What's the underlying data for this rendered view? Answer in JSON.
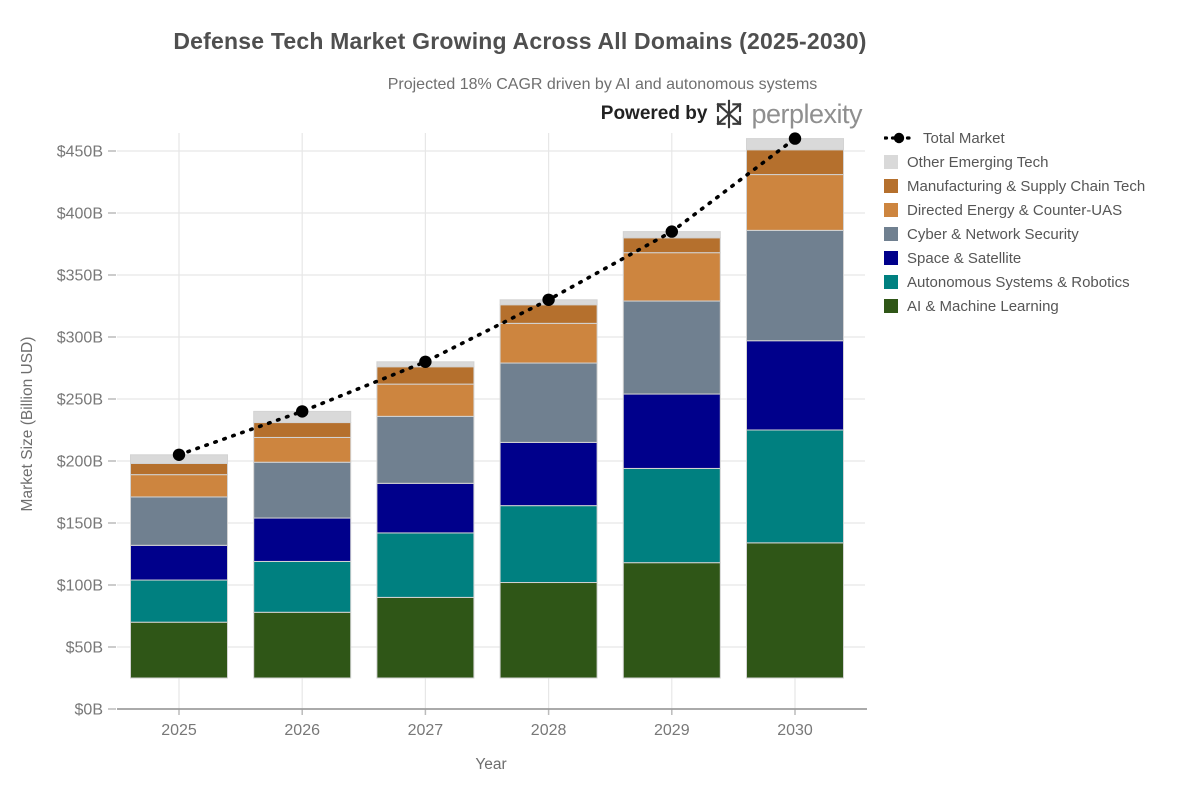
{
  "header": {
    "title": "Defense Tech Market Growing Across All Domains (2025-2030)",
    "subtitle": "Projected 18% CAGR driven by AI and autonomous systems",
    "powered_by": "Powered by",
    "brand": "perplexity"
  },
  "chart_data": {
    "type": "bar",
    "stacked": true,
    "title": "Defense Tech Market Growing Across All Domains (2025-2030)",
    "subtitle": "Projected 18% CAGR driven by AI and autonomous systems",
    "xlabel": "Year",
    "ylabel": "Market Size (Billion USD)",
    "categories": [
      "2025",
      "2026",
      "2027",
      "2028",
      "2029",
      "2030"
    ],
    "series": [
      {
        "name": "AI & Machine Learning",
        "color": "#2f5617",
        "values": [
          45,
          53,
          65,
          77,
          93,
          109
        ]
      },
      {
        "name": "Autonomous Systems & Robotics",
        "color": "#008080",
        "values": [
          34,
          41,
          52,
          62,
          76,
          91
        ]
      },
      {
        "name": "Space & Satellite",
        "color": "#00008b",
        "values": [
          28,
          35,
          40,
          51,
          60,
          72
        ]
      },
      {
        "name": "Cyber & Network Security",
        "color": "#708090",
        "values": [
          39,
          45,
          54,
          64,
          75,
          89
        ]
      },
      {
        "name": "Directed Energy & Counter-UAS",
        "color": "#cd853f",
        "values": [
          18,
          20,
          26,
          32,
          39,
          45
        ]
      },
      {
        "name": "Manufacturing & Supply Chain Tech",
        "color": "#b5702d",
        "values": [
          9,
          12,
          14,
          15,
          12,
          20
        ]
      },
      {
        "name": "Other Emerging Tech",
        "color": "#d9d9d9",
        "values": [
          7,
          9,
          4,
          4,
          5,
          9
        ]
      }
    ],
    "total_line": {
      "name": "Total Market",
      "color": "#000000",
      "values": [
        205,
        240,
        280,
        330,
        385,
        460
      ]
    },
    "stack_base": 25,
    "ylim": [
      0,
      475
    ],
    "yticks": [
      {
        "v": 0,
        "label": "$0B"
      },
      {
        "v": 50,
        "label": "$50B"
      },
      {
        "v": 100,
        "label": "$100B"
      },
      {
        "v": 150,
        "label": "$150B"
      },
      {
        "v": 200,
        "label": "$200B"
      },
      {
        "v": 250,
        "label": "$250B"
      },
      {
        "v": 300,
        "label": "$300B"
      },
      {
        "v": 350,
        "label": "$350B"
      },
      {
        "v": 400,
        "label": "$400B"
      },
      {
        "v": 450,
        "label": "$450B"
      }
    ],
    "grid": true,
    "legend_position": "right",
    "colors": {
      "grid": "#e7e7e7",
      "axis": "#9e9e9e",
      "tick": "#bbbbbb",
      "bar_edge": "#d3d3d3",
      "background": "#ffffff"
    }
  }
}
